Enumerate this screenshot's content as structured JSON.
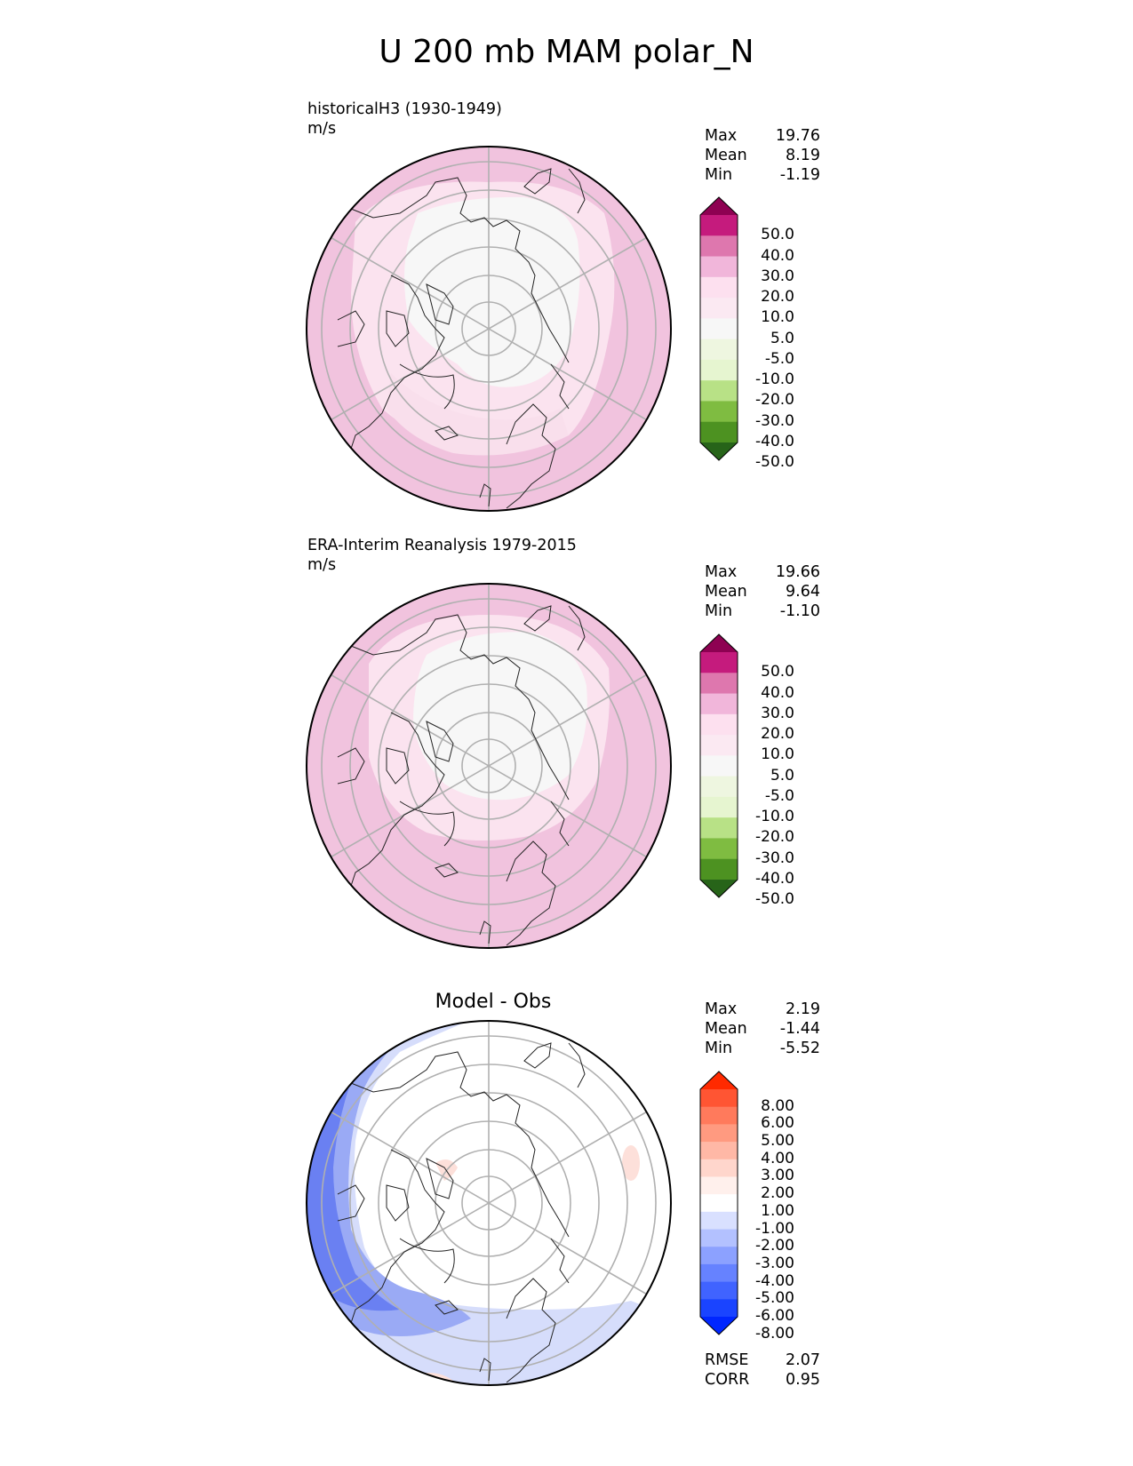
{
  "title": "U 200 mb MAM polar_N",
  "panels": [
    {
      "id": "model",
      "label_line1": "historicalH3 (1930-1949)",
      "label_line2": "m/s",
      "stats": [
        {
          "name": "Max",
          "value": "19.76"
        },
        {
          "name": "Mean",
          "value": "8.19"
        },
        {
          "name": "Min",
          "value": "-1.19"
        }
      ],
      "colorbar_ticks": [
        "50.0",
        "40.0",
        "30.0",
        "20.0",
        "10.0",
        "5.0",
        "-5.0",
        "-10.0",
        "-20.0",
        "-30.0",
        "-40.0",
        "-50.0"
      ],
      "colorbar_colors": [
        "#8e0152",
        "#c51b7d",
        "#de77ae",
        "#f1b6da",
        "#fde0ef",
        "#fbe9f2",
        "#f7f7f7",
        "#eef6e0",
        "#e6f5d0",
        "#b8e186",
        "#7fbc41",
        "#4d9221",
        "#276419"
      ]
    },
    {
      "id": "obs",
      "label_line1": "ERA-Interim Reanalysis 1979-2015",
      "label_line2": "m/s",
      "stats": [
        {
          "name": "Max",
          "value": "19.66"
        },
        {
          "name": "Mean",
          "value": "9.64"
        },
        {
          "name": "Min",
          "value": "-1.10"
        }
      ],
      "colorbar_ticks": [
        "50.0",
        "40.0",
        "30.0",
        "20.0",
        "10.0",
        "5.0",
        "-5.0",
        "-10.0",
        "-20.0",
        "-30.0",
        "-40.0",
        "-50.0"
      ],
      "colorbar_colors": [
        "#8e0152",
        "#c51b7d",
        "#de77ae",
        "#f1b6da",
        "#fde0ef",
        "#fbe9f2",
        "#f7f7f7",
        "#eef6e0",
        "#e6f5d0",
        "#b8e186",
        "#7fbc41",
        "#4d9221",
        "#276419"
      ]
    },
    {
      "id": "diff",
      "title": "Model - Obs",
      "stats": [
        {
          "name": "Max",
          "value": "2.19"
        },
        {
          "name": "Mean",
          "value": "-1.44"
        },
        {
          "name": "Min",
          "value": "-5.52"
        }
      ],
      "colorbar_ticks": [
        "8.00",
        "6.00",
        "5.00",
        "4.00",
        "3.00",
        "2.00",
        "1.00",
        "-1.00",
        "-2.00",
        "-3.00",
        "-4.00",
        "-5.00",
        "-6.00",
        "-8.00"
      ],
      "colorbar_colors": [
        "#ff2a00",
        "#ff5533",
        "#ff7a5c",
        "#ff9a80",
        "#ffb8a6",
        "#ffd6cc",
        "#fff0ec",
        "#ffffff",
        "#d9e0ff",
        "#b3c1ff",
        "#8ca1ff",
        "#6682ff",
        "#4063ff",
        "#1a44ff",
        "#0026ff"
      ],
      "metrics": [
        {
          "name": "RMSE",
          "value": "2.07"
        },
        {
          "name": "CORR",
          "value": "0.95"
        }
      ]
    }
  ]
}
